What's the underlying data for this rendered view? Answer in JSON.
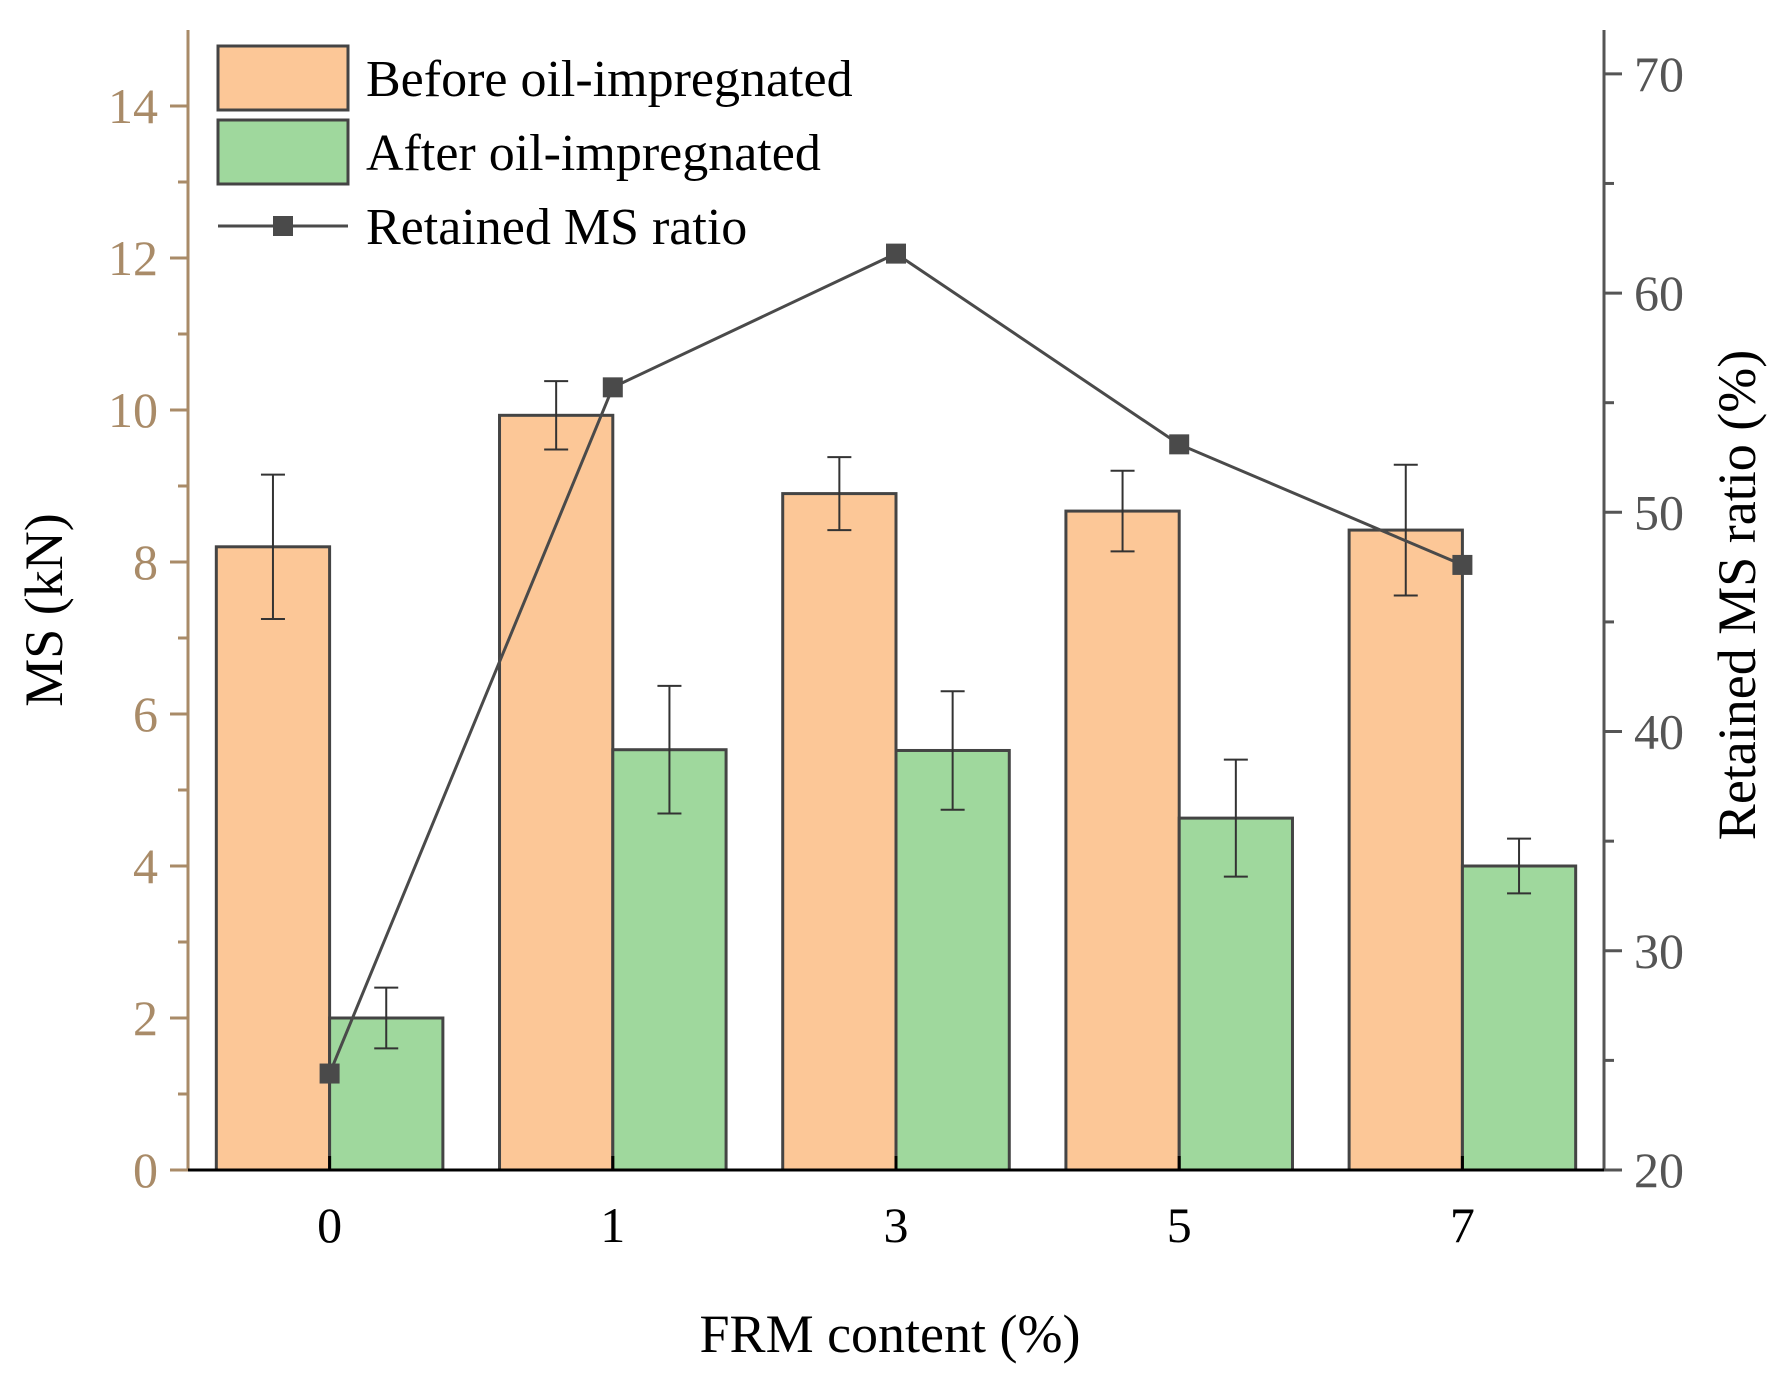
{
  "chart_data": {
    "type": "bar",
    "title": "",
    "xlabel": "FRM content (%)",
    "ylabel": "MS (kN)",
    "ylabel_right": "Retained MS ratio (%)",
    "categories": [
      "0",
      "1",
      "3",
      "5",
      "7"
    ],
    "ylim": [
      0,
      15
    ],
    "ylim_right": [
      20,
      72
    ],
    "yticks": [
      "0",
      "2",
      "4",
      "6",
      "8",
      "10",
      "12",
      "14"
    ],
    "yticks_right": [
      "20",
      "30",
      "40",
      "50",
      "60",
      "70"
    ],
    "series": [
      {
        "name": "Before oil-impregnated",
        "type": "bar",
        "axis": "left",
        "color": "#fcc797",
        "values": [
          8.2,
          9.93,
          8.9,
          8.67,
          8.42
        ],
        "errors": [
          0.95,
          0.45,
          0.48,
          0.53,
          0.86
        ]
      },
      {
        "name": "After oil-impregnated",
        "type": "bar",
        "axis": "left",
        "color": "#9fd89d",
        "values": [
          2.0,
          5.53,
          5.52,
          4.63,
          4.0
        ],
        "errors": [
          0.4,
          0.84,
          0.78,
          0.77,
          0.36
        ]
      },
      {
        "name": "Retained MS ratio",
        "type": "line",
        "axis": "right",
        "color": "#4a4a4a",
        "marker": "square",
        "values": [
          24.4,
          55.7,
          61.8,
          53.1,
          47.6
        ]
      }
    ],
    "legend_position": "top-left",
    "colors": {
      "left_axis": "#a98b68",
      "right_axis": "#555555",
      "bar_edge": "#444444",
      "text": "#000000"
    }
  }
}
